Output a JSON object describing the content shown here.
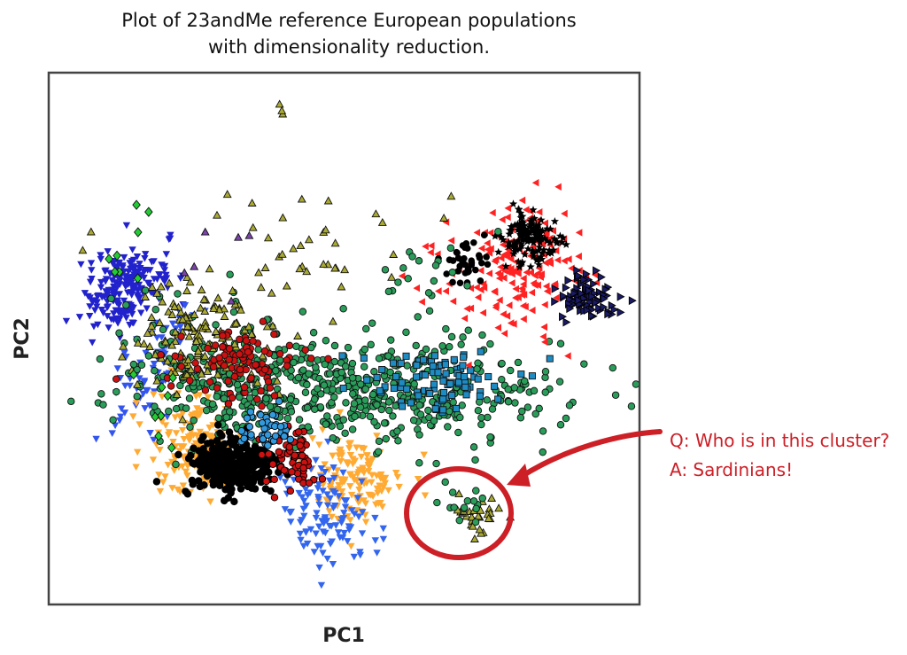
{
  "chart_data": {
    "type": "scatter",
    "title": "Plot of 23andMe reference European populations with dimensionality reduction.",
    "title_lines": [
      "Plot of 23andMe reference European populations",
      "with dimensionality reduction."
    ],
    "xlabel": "PC1",
    "ylabel": "PC2",
    "xlim": [
      0,
      100
    ],
    "ylim": [
      0,
      100
    ],
    "ticks": "none",
    "grid": false,
    "legend": "none",
    "clusters": [
      {
        "shape": "tri_down",
        "color": "#2222cc",
        "outline": "none",
        "count": 220,
        "cx": 13,
        "cy": 60,
        "sx": 3.0,
        "sy": 4.5,
        "rot": -40
      },
      {
        "shape": "tri_down",
        "color": "#3355ee",
        "outline": "none",
        "count": 80,
        "cx": 18,
        "cy": 44,
        "sx": 2.5,
        "sy": 7,
        "rot": -25
      },
      {
        "shape": "tri_down",
        "color": "#ffaa33",
        "outline": "none",
        "count": 160,
        "cx": 25,
        "cy": 30,
        "sx": 4,
        "sy": 5,
        "rot": 0
      },
      {
        "shape": "tri_down",
        "color": "#ffaa33",
        "outline": "none",
        "count": 140,
        "cx": 52,
        "cy": 24,
        "sx": 4,
        "sy": 4,
        "rot": 0
      },
      {
        "shape": "tri_down",
        "color": "#3366ee",
        "outline": "none",
        "count": 110,
        "cx": 47,
        "cy": 17,
        "sx": 3.5,
        "sy": 5,
        "rot": 20
      },
      {
        "shape": "circle",
        "color": "#2a9d5a",
        "outline": "#111111",
        "count": 420,
        "cx": 57,
        "cy": 40,
        "sx": 15,
        "sy": 5,
        "rot": 0
      },
      {
        "shape": "circle",
        "color": "#2a9d5a",
        "outline": "#111111",
        "count": 220,
        "cx": 30,
        "cy": 43,
        "sx": 10,
        "sy": 6,
        "rot": -12
      },
      {
        "shape": "triangle",
        "color": "#aaaa33",
        "outline": "#111111",
        "count": 140,
        "cx": 26,
        "cy": 50,
        "sx": 6,
        "sy": 5,
        "rot": -25
      },
      {
        "shape": "circle",
        "color": "#cc1111",
        "outline": "#111111",
        "count": 100,
        "cx": 32,
        "cy": 45,
        "sx": 5,
        "sy": 3,
        "rot": 0
      },
      {
        "shape": "square",
        "color": "#1e8bc3",
        "outline": "#111111",
        "count": 90,
        "cx": 66,
        "cy": 42,
        "sx": 6,
        "sy": 3,
        "rot": 0
      },
      {
        "shape": "circle",
        "color": "#000000",
        "outline": "#000000",
        "count": 280,
        "cx": 31,
        "cy": 26,
        "sx": 4,
        "sy": 3,
        "rot": 0
      },
      {
        "shape": "circle",
        "color": "#cc1111",
        "outline": "#000000",
        "count": 60,
        "cx": 41,
        "cy": 27,
        "sx": 2,
        "sy": 3,
        "rot": 0
      },
      {
        "shape": "circle",
        "color": "#3399dd",
        "outline": "#000000",
        "count": 40,
        "cx": 36,
        "cy": 33,
        "sx": 3,
        "sy": 2,
        "rot": 0
      },
      {
        "shape": "tri_left",
        "color": "#ff2222",
        "outline": "none",
        "count": 170,
        "cx": 79,
        "cy": 63,
        "sx": 6,
        "sy": 6,
        "rot": -15
      },
      {
        "shape": "star",
        "color": "#000000",
        "outline": "none",
        "count": 130,
        "cx": 82,
        "cy": 69,
        "sx": 2.5,
        "sy": 2.5,
        "rot": 0
      },
      {
        "shape": "circle",
        "color": "#000000",
        "outline": "none",
        "count": 35,
        "cx": 70,
        "cy": 64,
        "sx": 2,
        "sy": 2,
        "rot": 0
      },
      {
        "shape": "tri_right",
        "color": "#1a1a66",
        "outline": "#000000",
        "count": 90,
        "cx": 91,
        "cy": 58,
        "sx": 2.5,
        "sy": 2,
        "rot": 0
      },
      {
        "shape": "triangle",
        "color": "#aaaa33",
        "outline": "#111111",
        "count": 30,
        "cx": 73,
        "cy": 17,
        "sx": 2,
        "sy": 2,
        "rot": 0
      },
      {
        "shape": "circle",
        "color": "#2a9d5a",
        "outline": "#111111",
        "count": 15,
        "cx": 71,
        "cy": 19,
        "sx": 2,
        "sy": 2,
        "rot": 0
      },
      {
        "shape": "triangle",
        "color": "#aaaa33",
        "outline": "#111111",
        "count": 45,
        "cx": 42,
        "cy": 66,
        "sx": 11,
        "sy": 7,
        "rot": 0
      },
      {
        "shape": "circle",
        "color": "#2a9d5a",
        "outline": "#111111",
        "count": 20,
        "cx": 63,
        "cy": 62,
        "sx": 6,
        "sy": 4,
        "rot": 0
      },
      {
        "shape": "diamond",
        "color": "#22cc33",
        "outline": "#111111",
        "count": 8,
        "cx": 13,
        "cy": 65,
        "sx": 2,
        "sy": 5,
        "rot": 0
      },
      {
        "shape": "diamond",
        "color": "#22cc33",
        "outline": "#111111",
        "count": 8,
        "cx": 20,
        "cy": 38,
        "sx": 3,
        "sy": 6,
        "rot": 0
      },
      {
        "shape": "triangle",
        "color": "#aaaa33",
        "outline": "#111111",
        "count": 3,
        "cx": 39.5,
        "cy": 93,
        "sx": 0.3,
        "sy": 1.2,
        "rot": 0
      },
      {
        "shape": "triangle",
        "color": "#7a44aa",
        "outline": "#111111",
        "count": 6,
        "cx": 29,
        "cy": 66,
        "sx": 4,
        "sy": 4,
        "rot": 0
      }
    ]
  },
  "annotation": {
    "line1": "Q: Who is in this cluster?",
    "line2": "A: Sardinians!",
    "color": "#cc1f26"
  }
}
